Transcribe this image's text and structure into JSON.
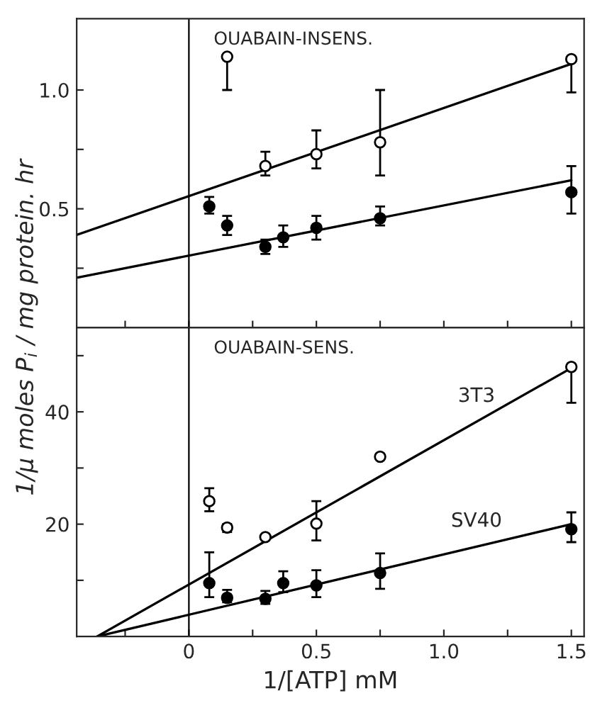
{
  "chart_data": [
    {
      "type": "scatter",
      "xlim": [
        -0.44,
        1.55
      ],
      "ylim": [
        0,
        1.3
      ],
      "xticks": [
        {
          "value": -0.25,
          "label": null
        },
        0,
        {
          "value": 0.25,
          "label": null
        },
        0.5,
        {
          "value": 0.75,
          "label": null
        },
        1.0,
        {
          "value": 1.25,
          "label": null
        },
        1.5
      ],
      "yticks": [
        {
          "value": 0.25,
          "label": null
        },
        0.5,
        {
          "value": 0.75,
          "label": null
        },
        {
          "value": 1.0,
          "label": "1.0"
        }
      ],
      "tick_labels": "y",
      "marker": "circle",
      "legend": false,
      "grid": false,
      "ref_lines": [
        {
          "axis": "x",
          "value": 0,
          "color": "#000000"
        }
      ],
      "annotations": [
        "OUABAIN-INSENS."
      ],
      "series": [
        {
          "color": "#ffffff",
          "x": [
            0.15,
            0.3,
            0.5,
            0.75,
            1.5
          ],
          "values": [
            1.14,
            0.68,
            0.73,
            0.78,
            1.13
          ],
          "errors": [
            [
              1.0,
              1.14
            ],
            [
              0.64,
              0.74
            ],
            [
              0.67,
              0.83
            ],
            [
              0.64,
              1.0
            ],
            [
              0.99,
              1.13
            ]
          ]
        },
        {
          "color": "#000000",
          "x": [
            0.08,
            0.15,
            0.3,
            0.37,
            0.5,
            0.75,
            1.5
          ],
          "values": [
            0.51,
            0.43,
            0.34,
            0.38,
            0.42,
            0.46,
            0.57
          ],
          "errors": [
            [
              0.48,
              0.55
            ],
            [
              0.39,
              0.47
            ],
            [
              0.31,
              0.37
            ],
            [
              0.34,
              0.43
            ],
            [
              0.37,
              0.47
            ],
            [
              0.43,
              0.51
            ],
            [
              0.48,
              0.68
            ]
          ]
        },
        {
          "type": "line",
          "marker": "none",
          "color": "#000000",
          "x": [
            -0.44,
            1.5
          ],
          "values": [
            0.39,
            1.11
          ]
        },
        {
          "type": "line",
          "marker": "none",
          "color": "#000000",
          "x": [
            -0.44,
            1.5
          ],
          "values": [
            0.21,
            0.62
          ]
        }
      ]
    },
    {
      "type": "scatter",
      "xlim": [
        -0.44,
        1.55
      ],
      "ylim": [
        0,
        55
      ],
      "xticks": [
        {
          "value": -0.25,
          "label": null
        },
        0,
        {
          "value": 0.25,
          "label": null
        },
        0.5,
        {
          "value": 0.75,
          "label": null
        },
        {
          "value": 1.0,
          "label": "1.0"
        },
        {
          "value": 1.25,
          "label": null
        },
        1.5
      ],
      "yticks": [
        {
          "value": 10,
          "label": null
        },
        20,
        {
          "value": 30,
          "label": null
        },
        40,
        {
          "value": 50,
          "label": null
        }
      ],
      "xlabel": "1/[ATP] mM",
      "ylabel": "1/μ moles P$_{i}$ / mg protein. hr",
      "marker": "circle",
      "legend": false,
      "grid": false,
      "ref_lines": [
        {
          "axis": "x",
          "value": 0,
          "color": "#000000"
        }
      ],
      "annotations": [
        "OUABAIN-SENS."
      ],
      "series": [
        {
          "color": "#ffffff",
          "x": [
            0.08,
            0.15,
            0.3,
            0.5,
            0.75,
            1.5
          ],
          "values": [
            24.1,
            19.4,
            17.7,
            20.1,
            32.0,
            48.0
          ],
          "errors": [
            [
              22.3,
              26.4
            ],
            [
              18.6,
              20.0
            ],
            null,
            [
              17.1,
              24.1
            ],
            null,
            [
              41.6,
              48.0
            ]
          ]
        },
        {
          "color": "#000000",
          "x": [
            0.08,
            0.15,
            0.3,
            0.37,
            0.5,
            0.75,
            1.5
          ],
          "values": [
            9.5,
            6.9,
            6.7,
            9.5,
            9.1,
            11.3,
            19.1
          ],
          "errors": [
            [
              7.0,
              15.0
            ],
            [
              6.1,
              8.3
            ],
            [
              5.8,
              8.1
            ],
            [
              7.9,
              11.6
            ],
            [
              7.0,
              11.8
            ],
            [
              8.5,
              14.8
            ],
            [
              16.8,
              22.1
            ]
          ]
        },
        {
          "type": "line",
          "marker": "none",
          "name": "3T3",
          "color": "#000000",
          "x": [
            -0.36,
            1.5
          ],
          "values": [
            0,
            47.8
          ]
        },
        {
          "type": "line",
          "marker": "none",
          "name": "SV40",
          "color": "#000000",
          "x": [
            -0.36,
            1.5
          ],
          "values": [
            0,
            20.0
          ]
        }
      ]
    }
  ]
}
